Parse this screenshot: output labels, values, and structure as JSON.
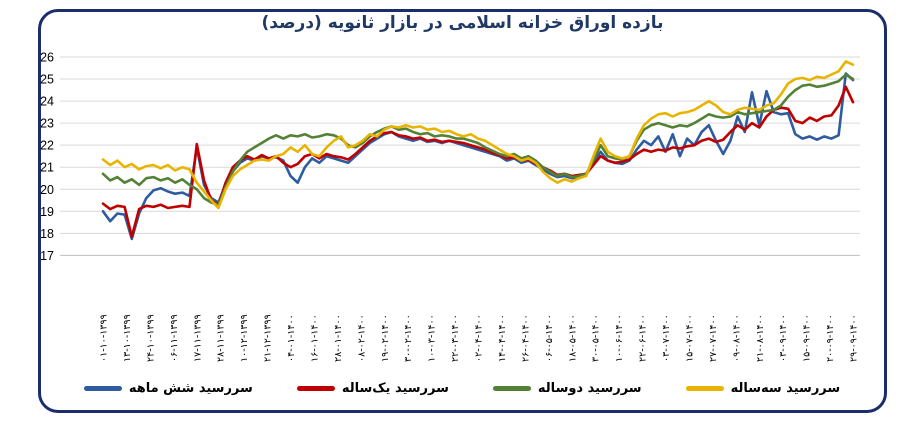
{
  "chart_data": {
    "type": "line",
    "title": "بازده اوراق خزانه اسلامی در بازار ثانویه (درصد)",
    "xlabel": "",
    "ylabel": "",
    "ylim": [
      17,
      26
    ],
    "y_ticks": [
      17,
      18,
      19,
      20,
      21,
      22,
      23,
      24,
      25,
      26
    ],
    "grid": "horizontal",
    "legend_position": "bottom",
    "x_tick_labels": [
      "۰۱-۱۰-۱۳۹۹",
      "۱۳-۱۰-۱۳۹۹",
      "۲۴-۱۰-۱۳۹۹",
      "۰۶-۱۱-۱۳۹۹",
      "۱۷-۱۱-۱۳۹۹",
      "۲۸-۱۱-۱۳۹۹",
      "۱۰-۱۲-۱۳۹۹",
      "۲۱-۱۲-۱۳۹۹",
      "۰۴-۰۱-۱۴۰۰",
      "۱۶-۰۱-۱۴۰۰",
      "۲۸-۰۱-۱۴۰۰",
      "۰۸-۰۲-۱۴۰۰",
      "۱۹-۰۲-۱۴۰۰",
      "۳۰-۰۲-۱۴۰۰",
      "۱۰-۰۳-۱۴۰۰",
      "۲۲-۰۳-۱۴۰۰",
      "۰۲-۰۴-۱۴۰۰",
      "۱۴-۰۴-۱۴۰۰",
      "۲۶-۰۴-۱۴۰۰",
      "۰۶-۰۵-۱۴۰۰",
      "۱۸-۰۵-۱۴۰۰",
      "۳۰-۰۵-۱۴۰۰",
      "۱۰-۰۶-۱۴۰۰",
      "۲۲-۰۶-۱۴۰۰",
      "۰۳-۰۷-۱۴۰۰",
      "۱۵-۰۷-۱۴۰۰",
      "۲۷-۰۷-۱۴۰۰",
      "۰۹-۰۸-۱۴۰۰",
      "۲۱-۰۸-۱۴۰۰",
      "۰۳-۰۹-۱۴۰۰",
      "۱۵-۰۹-۱۴۰۰",
      "۲۰-۰۹-۱۴۰۰",
      "۲۹-۰۹-۱۴۰۰"
    ],
    "series": [
      {
        "name": "سررسید  شش ماهه",
        "id": "six-month",
        "color": "#2e5c9e",
        "values": [
          19.0,
          18.55,
          18.9,
          18.85,
          17.75,
          18.9,
          19.6,
          19.95,
          20.05,
          19.9,
          19.8,
          19.85,
          19.7,
          21.9,
          20.2,
          19.6,
          19.4,
          20.2,
          20.8,
          21.2,
          21.4,
          21.3,
          21.5,
          21.4,
          21.45,
          21.3,
          20.6,
          20.3,
          21.0,
          21.4,
          21.2,
          21.5,
          21.4,
          21.3,
          21.2,
          21.5,
          21.8,
          22.1,
          22.3,
          22.5,
          22.6,
          22.4,
          22.3,
          22.2,
          22.3,
          22.15,
          22.2,
          22.1,
          22.2,
          22.1,
          22.0,
          21.9,
          21.8,
          21.7,
          21.6,
          21.5,
          21.3,
          21.4,
          21.2,
          21.3,
          21.1,
          20.9,
          20.7,
          20.55,
          20.6,
          20.5,
          20.55,
          20.65,
          21.2,
          21.7,
          21.3,
          21.2,
          21.15,
          21.3,
          21.8,
          22.2,
          22.0,
          22.4,
          21.7,
          22.5,
          21.5,
          22.3,
          22.0,
          22.6,
          22.9,
          22.2,
          21.6,
          22.2,
          23.3,
          22.6,
          24.4,
          22.9,
          24.45,
          23.5,
          23.4,
          23.45,
          22.5,
          22.3,
          22.4,
          22.25,
          22.4,
          22.3,
          22.45,
          25.25,
          24.95
        ]
      },
      {
        "name": "سررسید یک‌ساله",
        "id": "one-year",
        "color": "#c00000",
        "values": [
          19.35,
          19.1,
          19.25,
          19.2,
          17.85,
          19.1,
          19.25,
          19.2,
          19.3,
          19.15,
          19.2,
          19.25,
          19.2,
          22.05,
          20.4,
          19.5,
          19.3,
          20.3,
          21.0,
          21.3,
          21.5,
          21.35,
          21.55,
          21.4,
          21.5,
          21.2,
          21.0,
          21.15,
          21.5,
          21.6,
          21.4,
          21.6,
          21.5,
          21.45,
          21.35,
          21.6,
          21.9,
          22.2,
          22.4,
          22.55,
          22.6,
          22.45,
          22.4,
          22.3,
          22.35,
          22.2,
          22.25,
          22.15,
          22.2,
          22.15,
          22.1,
          22.0,
          21.9,
          21.8,
          21.65,
          21.55,
          21.4,
          21.45,
          21.3,
          21.35,
          21.15,
          21.0,
          20.85,
          20.65,
          20.7,
          20.6,
          20.65,
          20.7,
          21.1,
          21.5,
          21.3,
          21.2,
          21.25,
          21.35,
          21.6,
          21.8,
          21.7,
          21.8,
          21.75,
          21.9,
          21.85,
          21.95,
          22.0,
          22.2,
          22.3,
          22.15,
          22.25,
          22.6,
          22.9,
          22.7,
          23.0,
          22.8,
          23.3,
          23.6,
          23.7,
          23.65,
          23.1,
          23.0,
          23.25,
          23.1,
          23.3,
          23.35,
          23.8,
          24.65,
          23.95
        ]
      },
      {
        "name": "سررسید دوساله",
        "id": "two-year",
        "color": "#538135",
        "values": [
          20.7,
          20.4,
          20.55,
          20.3,
          20.45,
          20.2,
          20.5,
          20.55,
          20.4,
          20.5,
          20.3,
          20.45,
          20.2,
          20.0,
          19.6,
          19.4,
          19.3,
          20.1,
          20.8,
          21.3,
          21.7,
          21.9,
          22.1,
          22.3,
          22.45,
          22.3,
          22.45,
          22.4,
          22.5,
          22.35,
          22.4,
          22.5,
          22.45,
          22.3,
          22.0,
          21.9,
          22.1,
          22.4,
          22.6,
          22.75,
          22.85,
          22.7,
          22.75,
          22.6,
          22.5,
          22.55,
          22.4,
          22.45,
          22.4,
          22.3,
          22.3,
          22.2,
          22.1,
          21.9,
          21.75,
          21.6,
          21.5,
          21.6,
          21.4,
          21.5,
          21.3,
          21.0,
          20.8,
          20.6,
          20.7,
          20.55,
          20.6,
          20.7,
          21.3,
          22.0,
          21.5,
          21.4,
          21.35,
          21.5,
          22.2,
          22.7,
          22.9,
          23.0,
          22.9,
          22.8,
          22.9,
          22.85,
          23.0,
          23.2,
          23.4,
          23.3,
          23.25,
          23.3,
          23.5,
          23.4,
          23.45,
          23.5,
          23.55,
          23.6,
          23.8,
          24.2,
          24.5,
          24.7,
          24.75,
          24.65,
          24.7,
          24.8,
          24.9,
          25.2,
          25.0
        ]
      },
      {
        "name": "سررسید سه‌ساله",
        "id": "three-year",
        "color": "#e9b400",
        "values": [
          21.35,
          21.1,
          21.3,
          21.0,
          21.15,
          20.9,
          21.05,
          21.1,
          20.95,
          21.1,
          20.85,
          21.0,
          20.9,
          20.3,
          19.9,
          19.5,
          19.15,
          20.0,
          20.6,
          20.9,
          21.1,
          21.3,
          21.35,
          21.3,
          21.5,
          21.6,
          21.9,
          21.7,
          22.0,
          21.6,
          21.5,
          21.9,
          22.2,
          22.4,
          21.9,
          22.0,
          22.2,
          22.5,
          22.4,
          22.7,
          22.85,
          22.8,
          22.9,
          22.8,
          22.85,
          22.7,
          22.75,
          22.6,
          22.65,
          22.5,
          22.4,
          22.5,
          22.3,
          22.2,
          22.0,
          21.8,
          21.6,
          21.5,
          21.3,
          21.4,
          21.2,
          20.8,
          20.5,
          20.3,
          20.45,
          20.35,
          20.5,
          20.6,
          21.5,
          22.3,
          21.7,
          21.5,
          21.4,
          21.5,
          22.3,
          22.9,
          23.2,
          23.4,
          23.45,
          23.3,
          23.45,
          23.5,
          23.6,
          23.8,
          24.0,
          23.8,
          23.5,
          23.4,
          23.6,
          23.7,
          23.65,
          23.6,
          23.8,
          23.9,
          24.3,
          24.8,
          25.0,
          25.05,
          24.95,
          25.1,
          25.05,
          25.2,
          25.35,
          25.8,
          25.65
        ]
      }
    ],
    "colors": {
      "frame_border": "#1b2e6b",
      "title_text": "#1f3864",
      "gridline": "#d9d9d9",
      "axis_text": "#000000"
    }
  }
}
